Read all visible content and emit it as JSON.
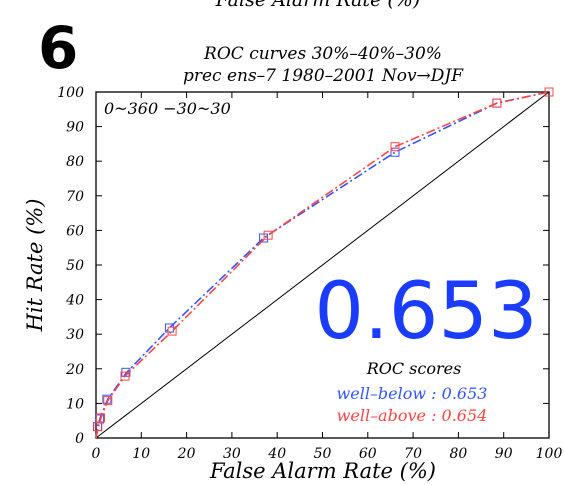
{
  "panel_number": "6",
  "clipped_top_text": "False Alarm Rate (%)",
  "chart_data": {
    "type": "line",
    "title": "ROC curves    30%–40%–30%",
    "subtitle": "prec ens–7 1980–2001 Nov→DJF",
    "region_label": "0~360  −30~30",
    "xlabel": "False Alarm Rate (%)",
    "ylabel": "Hit Rate (%)",
    "xlim": [
      0,
      100
    ],
    "ylim": [
      0,
      100
    ],
    "x_ticks": [
      "0",
      "10",
      "20",
      "30",
      "40",
      "50",
      "60",
      "70",
      "80",
      "90",
      "100"
    ],
    "y_ticks": [
      "0",
      "10",
      "20",
      "30",
      "40",
      "50",
      "60",
      "70",
      "80",
      "90",
      "100"
    ],
    "grid": false,
    "diagonal_reference": true,
    "big_score": "0.653",
    "scores_heading": "ROC scores",
    "series": [
      {
        "name": "well–below",
        "score_label": "well–below : 0.653",
        "color": "#3355ff",
        "x": [
          0.0,
          0.4,
          1.0,
          2.6,
          6.8,
          16.2,
          37.0,
          66.0,
          88.5,
          100.0
        ],
        "y": [
          0.0,
          3.6,
          6.0,
          11.2,
          19.0,
          31.8,
          57.8,
          82.6,
          96.8,
          100.0
        ],
        "markers": [
          [
            0.3,
            3.3
          ],
          [
            0.8,
            5.5
          ],
          [
            2.4,
            11.2
          ],
          [
            6.6,
            19.0
          ],
          [
            16.2,
            31.8
          ],
          [
            37.0,
            57.8
          ],
          [
            66.0,
            82.6
          ],
          [
            88.5,
            96.8
          ],
          [
            100.0,
            100.0
          ]
        ]
      },
      {
        "name": "well–above",
        "score_label": "well–above : 0.654",
        "color": "#ff4444",
        "x": [
          0.0,
          0.5,
          1.1,
          2.6,
          6.4,
          16.8,
          38.0,
          66.0,
          88.5,
          100.0
        ],
        "y": [
          0.0,
          3.2,
          5.8,
          10.8,
          17.9,
          30.9,
          58.6,
          84.2,
          96.8,
          100.0
        ],
        "markers": [
          [
            0.4,
            3.3
          ],
          [
            1.0,
            5.8
          ],
          [
            2.6,
            10.8
          ],
          [
            6.4,
            17.9
          ],
          [
            16.8,
            30.9
          ],
          [
            38.0,
            58.6
          ],
          [
            66.0,
            84.2
          ],
          [
            88.5,
            96.8
          ],
          [
            100.0,
            100.0
          ]
        ]
      }
    ]
  }
}
